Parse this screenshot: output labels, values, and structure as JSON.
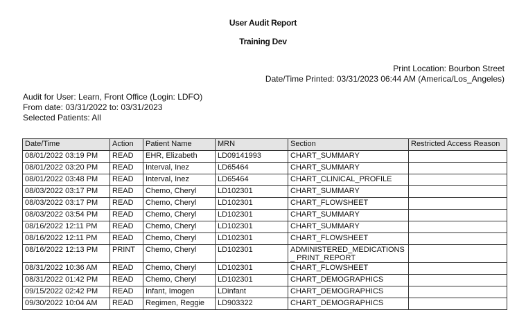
{
  "report": {
    "title": "User Audit Report",
    "subtitle": "Training Dev",
    "print_location": "Print Location: Bourbon Street",
    "printed": "Date/Time Printed: 03/31/2023 06:44 AM (America/Los_Angeles)",
    "audit_for": "Audit for User: Learn, Front Office (Login: LDFO)",
    "date_range": "From date: 03/31/2022 to: 03/31/2023",
    "selected_patients": "Selected Patients: All"
  },
  "table": {
    "headers": [
      "Date/Time",
      "Action",
      "Patient Name",
      "MRN",
      "Section",
      "Restricted Access Reason"
    ],
    "rows": [
      [
        "08/01/2022 03:19 PM",
        "READ",
        "EHR, Elizabeth",
        "LD09141993",
        "CHART_SUMMARY",
        ""
      ],
      [
        "08/01/2022 03:20 PM",
        "READ",
        "Interval, Inez",
        "LD65464",
        "CHART_SUMMARY",
        ""
      ],
      [
        "08/01/2022 03:48 PM",
        "READ",
        "Interval, Inez",
        "LD65464",
        "CHART_CLINICAL_PROFILE",
        ""
      ],
      [
        "08/03/2022 03:17 PM",
        "READ",
        "Chemo, Cheryl",
        "LD102301",
        "CHART_SUMMARY",
        ""
      ],
      [
        "08/03/2022 03:17 PM",
        "READ",
        "Chemo, Cheryl",
        "LD102301",
        "CHART_FLOWSHEET",
        ""
      ],
      [
        "08/03/2022 03:54 PM",
        "READ",
        "Chemo, Cheryl",
        "LD102301",
        "CHART_SUMMARY",
        ""
      ],
      [
        "08/16/2022 12:11 PM",
        "READ",
        "Chemo, Cheryl",
        "LD102301",
        "CHART_SUMMARY",
        ""
      ],
      [
        "08/16/2022 12:11 PM",
        "READ",
        "Chemo, Cheryl",
        "LD102301",
        "CHART_FLOWSHEET",
        ""
      ],
      [
        "08/16/2022 12:13 PM",
        "PRINT",
        "Chemo, Cheryl",
        "LD102301",
        "ADMINISTERED_MEDICATIONS_ PRINT_REPORT",
        ""
      ],
      [
        "08/31/2022 10:36 AM",
        "READ",
        "Chemo, Cheryl",
        "LD102301",
        "CHART_FLOWSHEET",
        ""
      ],
      [
        "08/31/2022 01:42 PM",
        "READ",
        "Chemo, Cheryl",
        "LD102301",
        "CHART_DEMOGRAPHICS",
        ""
      ],
      [
        "09/15/2022 02:42 PM",
        "READ",
        "Infant, Imogen",
        "LDinfant",
        "CHART_DEMOGRAPHICS",
        ""
      ],
      [
        "09/30/2022 10:04 AM",
        "READ",
        "Regimen, Reggie",
        "LD903322",
        "CHART_DEMOGRAPHICS",
        ""
      ]
    ]
  }
}
